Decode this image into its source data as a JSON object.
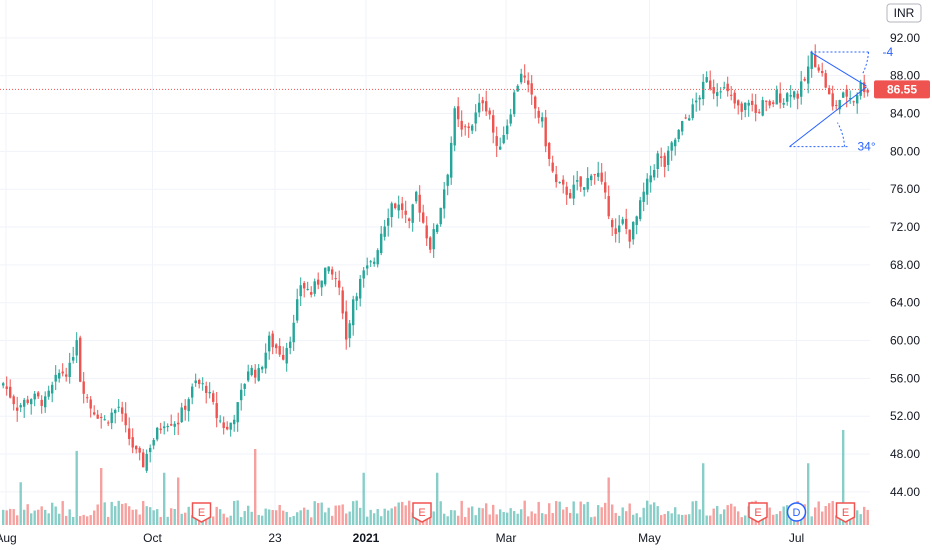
{
  "chart_data": {
    "type": "candlestick",
    "currency": "INR",
    "last_price": "86.55",
    "last_price_value": 86.55,
    "y_ticks": [
      92,
      88,
      84,
      80,
      76,
      72,
      68,
      64,
      60,
      56,
      52,
      48,
      44
    ],
    "y_tick_labels": [
      "92.00",
      "88.00",
      "84.00",
      "80.00",
      "76.00",
      "72.00",
      "68.00",
      "64.00",
      "60.00",
      "56.00",
      "52.00",
      "48.00",
      "44.00"
    ],
    "ylim": [
      40.5,
      96.0
    ],
    "x_labels": [
      {
        "label": "Aug",
        "bar": 0,
        "bold": false
      },
      {
        "label": "Oct",
        "bar": 43,
        "bold": false
      },
      {
        "label": "23",
        "bar": 78,
        "bold": false
      },
      {
        "label": "2021",
        "bar": 104,
        "bold": true
      },
      {
        "label": "Mar",
        "bar": 144,
        "bold": false
      },
      {
        "label": "May",
        "bar": 185,
        "bold": false
      },
      {
        "label": "Jul",
        "bar": 227,
        "bold": false
      }
    ],
    "events": [
      {
        "type": "E",
        "bar": 57
      },
      {
        "type": "E",
        "bar": 120
      },
      {
        "type": "E",
        "bar": 216
      },
      {
        "type": "D",
        "bar": 227
      },
      {
        "type": "E",
        "bar": 241
      }
    ],
    "anchors": [
      {
        "bar": 0,
        "price": 55.5
      },
      {
        "bar": 4,
        "price": 53.0
      },
      {
        "bar": 8,
        "price": 54.0
      },
      {
        "bar": 12,
        "price": 53.5
      },
      {
        "bar": 16,
        "price": 56.5
      },
      {
        "bar": 19,
        "price": 57.0
      },
      {
        "bar": 21,
        "price": 60.5
      },
      {
        "bar": 22,
        "price": 56.0
      },
      {
        "bar": 25,
        "price": 53.0
      },
      {
        "bar": 29,
        "price": 51.5
      },
      {
        "bar": 33,
        "price": 53.0
      },
      {
        "bar": 35,
        "price": 50.5
      },
      {
        "bar": 38,
        "price": 48.0
      },
      {
        "bar": 40,
        "price": 47.0
      },
      {
        "bar": 42,
        "price": 49.0
      },
      {
        "bar": 46,
        "price": 51.5
      },
      {
        "bar": 50,
        "price": 51.5
      },
      {
        "bar": 53,
        "price": 54.0
      },
      {
        "bar": 55,
        "price": 55.5
      },
      {
        "bar": 58,
        "price": 55.0
      },
      {
        "bar": 61,
        "price": 52.0
      },
      {
        "bar": 64,
        "price": 50.5
      },
      {
        "bar": 67,
        "price": 53.0
      },
      {
        "bar": 70,
        "price": 57.0
      },
      {
        "bar": 73,
        "price": 56.5
      },
      {
        "bar": 76,
        "price": 60.0
      },
      {
        "bar": 80,
        "price": 58.5
      },
      {
        "bar": 83,
        "price": 61.5
      },
      {
        "bar": 85,
        "price": 66.0
      },
      {
        "bar": 88,
        "price": 65.0
      },
      {
        "bar": 92,
        "price": 67.5
      },
      {
        "bar": 95,
        "price": 66.5
      },
      {
        "bar": 97,
        "price": 63.5
      },
      {
        "bar": 98,
        "price": 60.0
      },
      {
        "bar": 100,
        "price": 64.5
      },
      {
        "bar": 103,
        "price": 67.0
      },
      {
        "bar": 106,
        "price": 68.5
      },
      {
        "bar": 108,
        "price": 71.5
      },
      {
        "bar": 111,
        "price": 74.5
      },
      {
        "bar": 114,
        "price": 74.0
      },
      {
        "bar": 116,
        "price": 72.0
      },
      {
        "bar": 118,
        "price": 75.5
      },
      {
        "bar": 120,
        "price": 72.5
      },
      {
        "bar": 122,
        "price": 70.0
      },
      {
        "bar": 124,
        "price": 72.5
      },
      {
        "bar": 127,
        "price": 78.0
      },
      {
        "bar": 129,
        "price": 84.0
      },
      {
        "bar": 131,
        "price": 82.0
      },
      {
        "bar": 134,
        "price": 83.0
      },
      {
        "bar": 137,
        "price": 85.5
      },
      {
        "bar": 139,
        "price": 84.0
      },
      {
        "bar": 141,
        "price": 80.0
      },
      {
        "bar": 144,
        "price": 83.0
      },
      {
        "bar": 146,
        "price": 86.0
      },
      {
        "bar": 148,
        "price": 88.5
      },
      {
        "bar": 150,
        "price": 86.5
      },
      {
        "bar": 152,
        "price": 84.5
      },
      {
        "bar": 154,
        "price": 83.0
      },
      {
        "bar": 156,
        "price": 79.0
      },
      {
        "bar": 158,
        "price": 76.5
      },
      {
        "bar": 160,
        "price": 76.0
      },
      {
        "bar": 162,
        "price": 75.5
      },
      {
        "bar": 164,
        "price": 76.5
      },
      {
        "bar": 166,
        "price": 76.0
      },
      {
        "bar": 168,
        "price": 78.0
      },
      {
        "bar": 170,
        "price": 77.5
      },
      {
        "bar": 172,
        "price": 75.0
      },
      {
        "bar": 174,
        "price": 72.5
      },
      {
        "bar": 175,
        "price": 71.0
      },
      {
        "bar": 177,
        "price": 72.5
      },
      {
        "bar": 179,
        "price": 71.0
      },
      {
        "bar": 181,
        "price": 73.0
      },
      {
        "bar": 183,
        "price": 75.5
      },
      {
        "bar": 185,
        "price": 77.5
      },
      {
        "bar": 187,
        "price": 79.5
      },
      {
        "bar": 189,
        "price": 78.5
      },
      {
        "bar": 191,
        "price": 80.5
      },
      {
        "bar": 193,
        "price": 82.0
      },
      {
        "bar": 195,
        "price": 83.5
      },
      {
        "bar": 197,
        "price": 84.5
      },
      {
        "bar": 199,
        "price": 86.0
      },
      {
        "bar": 201,
        "price": 87.5
      },
      {
        "bar": 203,
        "price": 86.5
      },
      {
        "bar": 205,
        "price": 87.0
      },
      {
        "bar": 207,
        "price": 86.0
      },
      {
        "bar": 209,
        "price": 85.0
      },
      {
        "bar": 211,
        "price": 84.0
      },
      {
        "bar": 213,
        "price": 85.5
      },
      {
        "bar": 215,
        "price": 84.0
      },
      {
        "bar": 217,
        "price": 85.0
      },
      {
        "bar": 219,
        "price": 84.5
      },
      {
        "bar": 221,
        "price": 86.0
      },
      {
        "bar": 223,
        "price": 85.5
      },
      {
        "bar": 225,
        "price": 86.5
      },
      {
        "bar": 227,
        "price": 86.0
      },
      {
        "bar": 229,
        "price": 87.5
      },
      {
        "bar": 231,
        "price": 90.0
      },
      {
        "bar": 233,
        "price": 89.0
      },
      {
        "bar": 235,
        "price": 87.0
      },
      {
        "bar": 237,
        "price": 84.5
      },
      {
        "bar": 239,
        "price": 85.5
      },
      {
        "bar": 241,
        "price": 86.0
      },
      {
        "bar": 243,
        "price": 85.5
      },
      {
        "bar": 245,
        "price": 87.0
      },
      {
        "bar": 247,
        "price": 86.55
      }
    ],
    "volume_spikes": [
      {
        "bar": 21,
        "level": 0.78
      },
      {
        "bar": 5,
        "level": 0.45
      },
      {
        "bar": 28,
        "level": 0.6
      },
      {
        "bar": 46,
        "level": 0.55
      },
      {
        "bar": 50,
        "level": 0.5
      },
      {
        "bar": 72,
        "level": 0.8
      },
      {
        "bar": 103,
        "level": 0.55
      },
      {
        "bar": 124,
        "level": 0.55
      },
      {
        "bar": 173,
        "level": 0.5
      },
      {
        "bar": 200,
        "level": 0.65
      },
      {
        "bar": 230,
        "level": 0.65
      },
      {
        "bar": 240,
        "level": 1.0
      }
    ],
    "annotations": {
      "angle_lower": "34°",
      "angle_upper": "-4",
      "lower_line": [
        {
          "bar": 225,
          "price": 80.5
        },
        {
          "bar": 247,
          "price": 86.8
        }
      ],
      "upper_line": [
        {
          "bar": 231,
          "price": 90.5
        },
        {
          "bar": 247,
          "price": 86.9
        }
      ]
    }
  }
}
